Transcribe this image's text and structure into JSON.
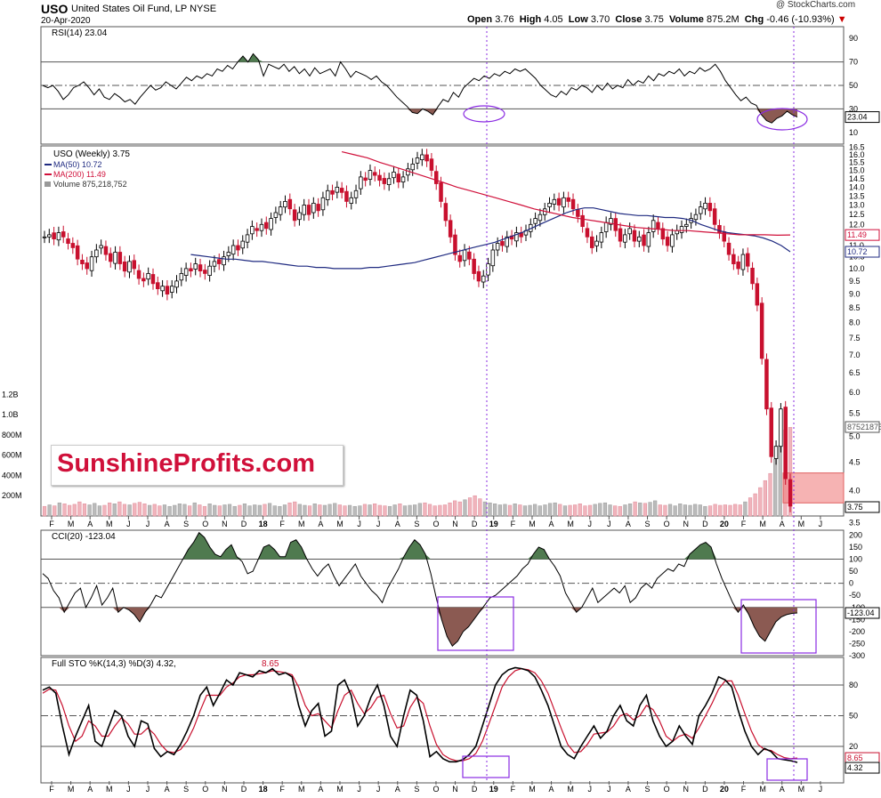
{
  "header": {
    "symbol": "USO",
    "name": "United States Oil Fund, LP NYSE",
    "date": "20-Apr-2020",
    "copyright": "@ StockCharts.com",
    "open_label": "Open",
    "open": "3.76",
    "high_label": "High",
    "high": "4.05",
    "low_label": "Low",
    "low": "3.70",
    "close_label": "Close",
    "close": "3.75",
    "volume_label": "Volume",
    "volume": "875.2M",
    "chg_label": "Chg",
    "chg": "-0.46 (-10.93%)"
  },
  "logo_text": "SunshineProfits.com",
  "colors": {
    "up": "#000000",
    "down": "#c8102e",
    "ma50": "#1f2a80",
    "ma200": "#d0103a",
    "vol_down": "#f0b4bc",
    "vol_up": "#bbbbbb",
    "pos_fill": "#4f7a4f",
    "neg_fill": "#8b5a52",
    "highlight": "#8a2be2"
  },
  "x_axis_labels": [
    "F",
    "M",
    "A",
    "M",
    "J",
    "J",
    "A",
    "S",
    "O",
    "N",
    "D",
    "18",
    "F",
    "M",
    "A",
    "M",
    "J",
    "J",
    "A",
    "S",
    "O",
    "N",
    "D",
    "19",
    "F",
    "M",
    "A",
    "M",
    "J",
    "J",
    "A",
    "S",
    "O",
    "N",
    "D",
    "20",
    "F",
    "M",
    "A",
    "M",
    "J"
  ],
  "chart_data": [
    {
      "type": "line",
      "legend": "RSI(14) 23.04",
      "ylim": [
        0,
        100
      ],
      "y_ticks": [
        "90",
        "70",
        "50",
        "30",
        "10"
      ],
      "levels": [
        70,
        50,
        30
      ],
      "last_value_label": "23.04",
      "values": [
        50,
        48,
        50,
        45,
        38,
        42,
        48,
        50,
        53,
        48,
        42,
        47,
        40,
        38,
        43,
        40,
        36,
        38,
        34,
        40,
        45,
        50,
        46,
        48,
        53,
        50,
        47,
        52,
        57,
        54,
        58,
        56,
        60,
        58,
        64,
        62,
        67,
        64,
        70,
        75,
        70,
        77,
        72,
        58,
        68,
        66,
        64,
        68,
        62,
        66,
        60,
        64,
        58,
        65,
        60,
        62,
        64,
        58,
        70,
        64,
        57,
        62,
        60,
        58,
        55,
        58,
        53,
        50,
        45,
        40,
        36,
        32,
        27,
        26,
        30,
        28,
        25,
        32,
        38,
        36,
        44,
        40,
        48,
        52,
        56,
        54,
        58,
        56,
        60,
        58,
        62,
        60,
        64,
        62,
        64,
        60,
        56,
        50,
        46,
        42,
        40,
        45,
        42,
        48,
        46,
        50,
        48,
        44,
        50,
        46,
        52,
        47,
        50,
        48,
        55,
        50,
        54,
        52,
        58,
        54,
        60,
        58,
        62,
        60,
        64,
        58,
        62,
        60,
        65,
        62,
        64,
        68,
        62,
        54,
        48,
        42,
        37,
        40,
        35,
        33,
        25,
        20,
        18,
        22,
        24,
        28,
        25,
        23.04
      ]
    },
    {
      "type": "candlestick",
      "legend": [
        "USO (Weekly) 3.75",
        "MA(50) 10.72",
        "MA(200) 11.49",
        "Volume 875,218,752"
      ],
      "y_scale": "log",
      "ylim": [
        3.6,
        16.6
      ],
      "y_ticks": [
        "16.5",
        "16.0",
        "15.5",
        "15.0",
        "14.5",
        "14.0",
        "13.5",
        "13.0",
        "12.5",
        "12.0",
        "11.5",
        "11.0",
        "10.5",
        "10.0",
        "9.5",
        "9.0",
        "8.5",
        "8.0",
        "7.5",
        "7.0",
        "6.5",
        "6.0",
        "5.5",
        "5.0",
        "4.5",
        "4.0",
        "3.5"
      ],
      "close_label": "3.75",
      "ma200_label": "11.49",
      "ma50_label": "10.72",
      "volume_label": "875218752",
      "volume_axis": [
        "1.2B",
        "1.0B",
        "800M",
        "600M",
        "400M",
        "200M"
      ],
      "close": [
        11.4,
        11.5,
        11.3,
        11.6,
        11.4,
        11.1,
        10.9,
        10.4,
        10.2,
        10.0,
        10.5,
        10.8,
        11.0,
        10.6,
        10.3,
        10.7,
        10.2,
        9.9,
        10.3,
        10.0,
        9.6,
        9.5,
        9.8,
        9.4,
        9.2,
        9.3,
        9.0,
        9.3,
        9.5,
        9.8,
        10.0,
        9.9,
        10.2,
        9.9,
        9.8,
        10.1,
        10.3,
        10.2,
        10.5,
        10.7,
        11.0,
        10.8,
        11.2,
        11.5,
        11.9,
        11.7,
        12.0,
        11.8,
        12.3,
        12.6,
        12.9,
        13.2,
        12.8,
        12.2,
        12.6,
        13.0,
        12.5,
        13.1,
        12.7,
        13.4,
        13.8,
        13.6,
        14.0,
        13.7,
        13.2,
        13.4,
        13.8,
        14.6,
        14.4,
        15.0,
        14.7,
        14.4,
        14.2,
        14.5,
        14.9,
        14.3,
        14.6,
        15.1,
        15.4,
        15.8,
        16.0,
        15.6,
        15.0,
        14.2,
        13.2,
        12.2,
        11.4,
        10.6,
        10.3,
        10.8,
        10.4,
        9.8,
        9.5,
        9.7,
        10.2,
        10.8,
        11.1,
        11.0,
        11.4,
        11.3,
        11.6,
        11.4,
        11.7,
        12.0,
        12.3,
        12.5,
        12.8,
        13.1,
        13.3,
        13.0,
        13.4,
        13.2,
        12.8,
        12.4,
        11.9,
        11.4,
        10.9,
        11.2,
        11.6,
        12.1,
        12.3,
        11.7,
        11.2,
        11.5,
        11.8,
        11.2,
        11.4,
        11.0,
        11.6,
        12.2,
        11.8,
        11.3,
        11.0,
        11.5,
        11.7,
        11.9,
        12.0,
        12.3,
        12.5,
        12.9,
        13.1,
        12.7,
        12.0,
        11.6,
        11.2,
        10.6,
        10.2,
        10.0,
        10.6,
        10.1,
        9.4,
        8.6,
        6.9,
        5.6,
        4.6,
        4.8,
        5.6,
        4.2,
        3.75
      ],
      "ma50": [
        10.6,
        10.55,
        10.5,
        10.45,
        10.4,
        10.4,
        10.35,
        10.3,
        10.3,
        10.25,
        10.2,
        10.15,
        10.1,
        10.1,
        10.05,
        10.05,
        10.0,
        10.0,
        10.0,
        10.0,
        10.05,
        10.05,
        10.1,
        10.15,
        10.2,
        10.25,
        10.35,
        10.45,
        10.55,
        10.65,
        10.75,
        10.85,
        10.95,
        11.05,
        11.15,
        11.3,
        11.45,
        11.6,
        11.8,
        12.0,
        12.2,
        12.4,
        12.6,
        12.75,
        12.85,
        12.85,
        12.75,
        12.65,
        12.55,
        12.5,
        12.45,
        12.45,
        12.4,
        12.35,
        12.35,
        12.3,
        12.2,
        12.0,
        11.85,
        11.7,
        11.6,
        11.55,
        11.5,
        11.45,
        11.35,
        11.2,
        11.0,
        10.72
      ],
      "ma50_start": 31,
      "ma200": [
        16.2,
        16.0,
        15.8,
        15.5,
        15.25,
        15.0,
        14.75,
        14.5,
        14.25,
        14.0,
        13.8,
        13.6,
        13.4,
        13.2,
        13.0,
        12.8,
        12.65,
        12.5,
        12.35,
        12.25,
        12.15,
        12.05,
        11.95,
        11.85,
        11.8,
        11.75,
        11.7,
        11.7,
        11.65,
        11.6,
        11.55,
        11.5,
        11.5,
        11.5,
        11.48,
        11.49
      ],
      "ma200_start": 63,
      "volume_m": [
        95,
        110,
        100,
        130,
        120,
        105,
        115,
        140,
        120,
        110,
        125,
        100,
        105,
        130,
        120,
        140,
        115,
        110,
        125,
        135,
        120,
        105,
        115,
        100,
        110,
        95,
        105,
        120,
        115,
        100,
        130,
        110,
        95,
        120,
        105,
        100,
        110,
        115,
        95,
        105,
        120,
        100,
        110,
        105,
        115,
        125,
        100,
        95,
        110,
        130,
        140,
        115,
        105,
        100,
        120,
        110,
        105,
        115,
        125,
        110,
        100,
        105,
        95,
        100,
        115,
        110,
        120,
        105,
        100,
        95,
        110,
        120,
        100,
        105,
        110,
        125,
        130,
        115,
        100,
        105,
        110,
        130,
        150,
        140,
        160,
        180,
        200,
        170,
        140,
        130,
        120,
        110,
        115,
        105,
        120,
        110,
        100,
        105,
        115,
        100,
        110,
        125,
        130,
        115,
        100,
        105,
        110,
        120,
        100,
        105,
        115,
        125,
        130,
        110,
        100,
        95,
        110,
        120,
        140,
        130,
        125,
        135,
        150,
        110,
        105,
        115,
        100,
        120,
        110,
        105,
        115,
        110,
        95,
        100,
        115,
        105,
        110,
        105,
        115,
        110,
        140,
        180,
        220,
        280,
        350,
        420,
        560,
        700,
        850,
        875.2
      ],
      "resistance_box": [
        4.3,
        3.8
      ]
    },
    {
      "type": "area",
      "legend": "CCI(20) -123.04",
      "ylim": [
        -300,
        220
      ],
      "y_ticks": [
        "200",
        "150",
        "100",
        "50",
        "0",
        "-50",
        "-100",
        "-150",
        "-200",
        "-250",
        "-300"
      ],
      "levels": [
        100,
        0,
        -100
      ],
      "last_value_label": "-123.04",
      "values": [
        40,
        20,
        -30,
        -60,
        -120,
        -80,
        -40,
        -20,
        -100,
        -60,
        -10,
        -90,
        -60,
        -20,
        -120,
        -100,
        -110,
        -130,
        -160,
        -120,
        -90,
        -50,
        -60,
        -20,
        20,
        60,
        100,
        140,
        170,
        210,
        190,
        150,
        120,
        110,
        140,
        160,
        110,
        90,
        40,
        50,
        100,
        150,
        160,
        140,
        110,
        110,
        170,
        180,
        150,
        100,
        60,
        30,
        60,
        80,
        30,
        -10,
        20,
        50,
        80,
        30,
        0,
        -30,
        -50,
        -80,
        -20,
        20,
        60,
        110,
        150,
        180,
        160,
        120,
        40,
        -60,
        -150,
        -220,
        -260,
        -240,
        -200,
        -180,
        -150,
        -120,
        -90,
        -60,
        -50,
        -30,
        -10,
        10,
        30,
        60,
        80,
        120,
        150,
        140,
        100,
        70,
        30,
        -40,
        -80,
        -120,
        -100,
        -60,
        -20,
        -80,
        -60,
        -40,
        -20,
        -40,
        -10,
        -80,
        -60,
        -20,
        0,
        -20,
        20,
        40,
        60,
        50,
        80,
        70,
        120,
        140,
        160,
        170,
        150,
        80,
        20,
        -30,
        -80,
        -120,
        -90,
        -130,
        -180,
        -220,
        -240,
        -200,
        -160,
        -140,
        -130,
        -125,
        -123.04
      ]
    },
    {
      "type": "line",
      "legend": [
        "Full STO %K(14,3) %D(3) 4.32,",
        "8.65"
      ],
      "ylim": [
        0,
        100
      ],
      "y_ticks": [
        "80",
        "50",
        "20"
      ],
      "levels": [
        80,
        50,
        20
      ],
      "k_label": "4.32",
      "d_label": "8.65",
      "k": [
        75,
        78,
        72,
        40,
        12,
        30,
        45,
        60,
        25,
        20,
        38,
        55,
        50,
        30,
        20,
        45,
        42,
        18,
        10,
        15,
        12,
        22,
        35,
        50,
        70,
        78,
        60,
        72,
        85,
        80,
        92,
        90,
        88,
        94,
        92,
        96,
        90,
        92,
        88,
        60,
        40,
        55,
        62,
        30,
        35,
        80,
        85,
        70,
        40,
        50,
        68,
        80,
        60,
        30,
        20,
        50,
        75,
        70,
        45,
        10,
        15,
        8,
        5,
        5,
        7,
        12,
        20,
        40,
        60,
        80,
        90,
        95,
        97,
        96,
        94,
        88,
        75,
        60,
        40,
        20,
        12,
        8,
        20,
        30,
        40,
        28,
        35,
        50,
        60,
        45,
        40,
        60,
        70,
        45,
        30,
        20,
        25,
        40,
        30,
        22,
        50,
        60,
        72,
        88,
        85,
        78,
        55,
        35,
        20,
        12,
        18,
        15,
        8,
        7,
        6,
        4.32
      ],
      "d": [
        72,
        76,
        75,
        60,
        40,
        25,
        30,
        45,
        40,
        30,
        30,
        40,
        48,
        42,
        32,
        32,
        38,
        32,
        22,
        15,
        14,
        17,
        25,
        38,
        55,
        70,
        70,
        70,
        78,
        82,
        88,
        90,
        90,
        91,
        92,
        94,
        93,
        92,
        90,
        78,
        60,
        50,
        52,
        45,
        38,
        55,
        70,
        75,
        62,
        52,
        58,
        68,
        70,
        52,
        38,
        40,
        58,
        68,
        62,
        40,
        22,
        12,
        8,
        6,
        6,
        8,
        13,
        25,
        42,
        60,
        78,
        88,
        94,
        96,
        95,
        92,
        84,
        72,
        55,
        38,
        22,
        14,
        15,
        22,
        32,
        33,
        34,
        40,
        50,
        52,
        46,
        50,
        60,
        56,
        45,
        30,
        25,
        30,
        32,
        28,
        38,
        50,
        62,
        76,
        84,
        84,
        70,
        52,
        35,
        22,
        17,
        16,
        12,
        9,
        8,
        8.65
      ]
    }
  ]
}
